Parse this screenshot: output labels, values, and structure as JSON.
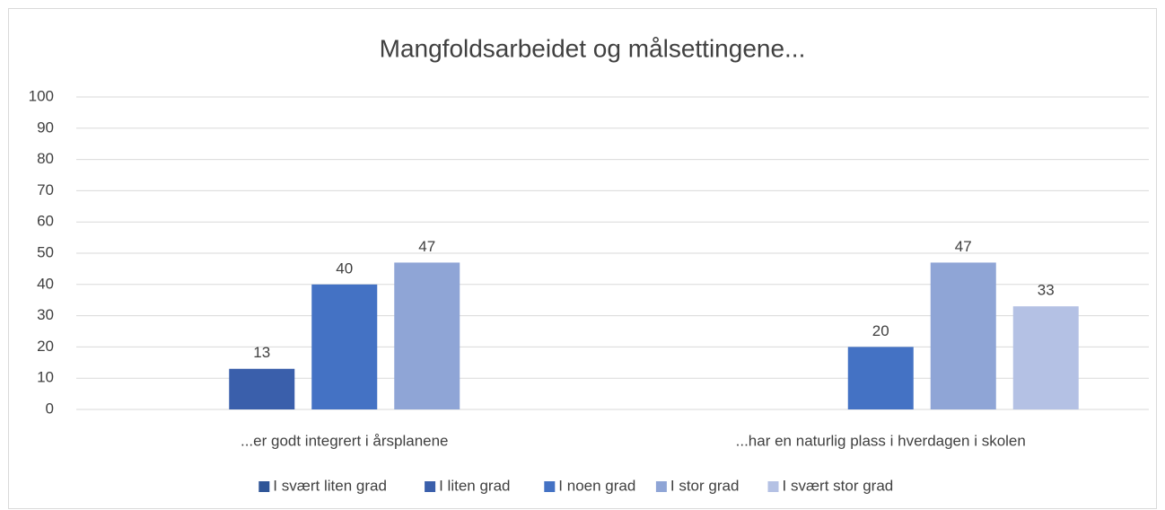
{
  "chart_data": {
    "type": "bar",
    "title": "Mangfoldsarbeidet og målsettingene...",
    "categories": [
      "...er godt integrert i årsplanene",
      "...har en naturlig plass i hverdagen i skolen"
    ],
    "series": [
      {
        "name": "I svært liten grad",
        "color": "#2f5597",
        "values": [
          null,
          null
        ]
      },
      {
        "name": "I liten grad",
        "color": "#3a5fab",
        "values": [
          13,
          null
        ]
      },
      {
        "name": "I noen grad",
        "color": "#4472c4",
        "values": [
          40,
          20
        ]
      },
      {
        "name": "I stor grad",
        "color": "#8fa5d6",
        "values": [
          47,
          47
        ]
      },
      {
        "name": "I svært stor grad",
        "color": "#b4c1e4",
        "values": [
          null,
          33
        ]
      }
    ],
    "ylim": [
      0,
      100
    ],
    "yticks": [
      0,
      10,
      20,
      30,
      40,
      50,
      60,
      70,
      80,
      90,
      100
    ],
    "grid": true,
    "legend": "bottom"
  }
}
